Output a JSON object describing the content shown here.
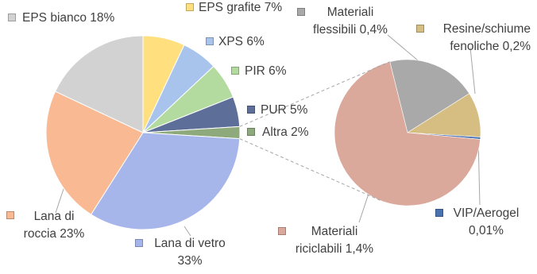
{
  "chart_data": [
    {
      "type": "pie",
      "categories": [
        "EPS grafite 7%",
        "XPS 6%",
        "PIR 6%",
        "PUR 5%",
        "Altra 2%",
        "Lana di vetro 33%",
        "Lana di roccia 23%",
        "EPS bianco 18%"
      ],
      "values": [
        7,
        6,
        6,
        5,
        2,
        33,
        23,
        18
      ],
      "colors": [
        "#ffdf7e",
        "#a9c4ec",
        "#b3dba0",
        "#5d6f98",
        "#8eaa7c",
        "#a6b5ea",
        "#f8b993",
        "#d2d2d2"
      ]
    },
    {
      "type": "pie",
      "categories": [
        "Materiali flessibili 0,4%",
        "Resine/schiume fenoliche 0,2%",
        "VIP/Aerogel 0,01%",
        "Materiali riciclabili 1,4%"
      ],
      "values": [
        0.4,
        0.2,
        0.01,
        1.4
      ],
      "colors": [
        "#a9a9a9",
        "#d6bd82",
        "#4a72b0",
        "#dba99c"
      ]
    }
  ]
}
